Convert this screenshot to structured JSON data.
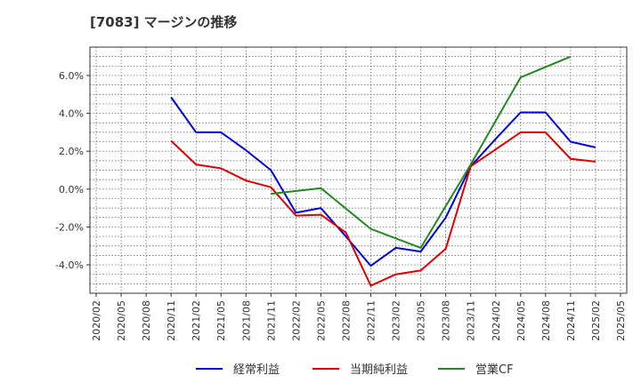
{
  "title": "[7083]  マージンの推移",
  "chart_data": {
    "type": "line",
    "title": "[7083]  マージンの推移",
    "xlabel": "",
    "ylabel": "",
    "x": [
      "2020/02",
      "2020/05",
      "2020/08",
      "2020/11",
      "2021/02",
      "2021/05",
      "2021/08",
      "2021/11",
      "2022/02",
      "2022/05",
      "2022/08",
      "2022/11",
      "2023/02",
      "2023/05",
      "2023/08",
      "2023/11",
      "2024/02",
      "2024/05",
      "2024/08",
      "2024/11",
      "2025/02",
      "2025/05"
    ],
    "ylim": [
      -5.5,
      7.5
    ],
    "yticks": [
      {
        "value": 6,
        "label": "6.0%"
      },
      {
        "value": 4,
        "label": "4.0%"
      },
      {
        "value": 2,
        "label": "2.0%"
      },
      {
        "value": 0,
        "label": "0.0%"
      },
      {
        "value": -2,
        "label": "-2.0%"
      },
      {
        "value": -4,
        "label": "-4.0%"
      }
    ],
    "grid": true,
    "legend_position": "bottom",
    "series": [
      {
        "name": "経常利益",
        "color": "#0000dd",
        "points": [
          [
            "2020/11",
            4.85
          ],
          [
            "2021/02",
            3.0
          ],
          [
            "2021/05",
            3.0
          ],
          [
            "2021/08",
            2.05
          ],
          [
            "2021/11",
            1.0
          ],
          [
            "2022/02",
            -1.25
          ],
          [
            "2022/05",
            -1.0
          ],
          [
            "2022/08",
            -2.5
          ],
          [
            "2022/11",
            -4.05
          ],
          [
            "2023/02",
            -3.1
          ],
          [
            "2023/05",
            -3.3
          ],
          [
            "2023/08",
            -1.5
          ],
          [
            "2023/11",
            1.2
          ],
          [
            "2024/02",
            2.65
          ],
          [
            "2024/05",
            4.05
          ],
          [
            "2024/08",
            4.05
          ],
          [
            "2024/11",
            2.5
          ],
          [
            "2025/02",
            2.2
          ]
        ]
      },
      {
        "name": "当期純利益",
        "color": "#dd0000",
        "points": [
          [
            "2020/11",
            2.55
          ],
          [
            "2021/02",
            1.3
          ],
          [
            "2021/05",
            1.1
          ],
          [
            "2021/08",
            0.45
          ],
          [
            "2021/11",
            0.1
          ],
          [
            "2022/02",
            -1.4
          ],
          [
            "2022/05",
            -1.35
          ],
          [
            "2022/08",
            -2.3
          ],
          [
            "2022/11",
            -5.1
          ],
          [
            "2023/02",
            -4.5
          ],
          [
            "2023/05",
            -4.3
          ],
          [
            "2023/08",
            -3.15
          ],
          [
            "2023/11",
            1.2
          ],
          [
            "2024/02",
            2.1
          ],
          [
            "2024/05",
            3.0
          ],
          [
            "2024/08",
            3.0
          ],
          [
            "2024/11",
            1.6
          ],
          [
            "2025/02",
            1.45
          ]
        ]
      },
      {
        "name": "営業CF",
        "color": "#228822",
        "points": [
          [
            "2021/11",
            -0.25
          ],
          [
            "2022/05",
            0.05
          ],
          [
            "2022/11",
            -2.1
          ],
          [
            "2023/05",
            -3.1
          ],
          [
            "2023/11",
            1.3
          ],
          [
            "2024/05",
            5.9
          ],
          [
            "2024/11",
            7.0
          ]
        ]
      }
    ]
  }
}
